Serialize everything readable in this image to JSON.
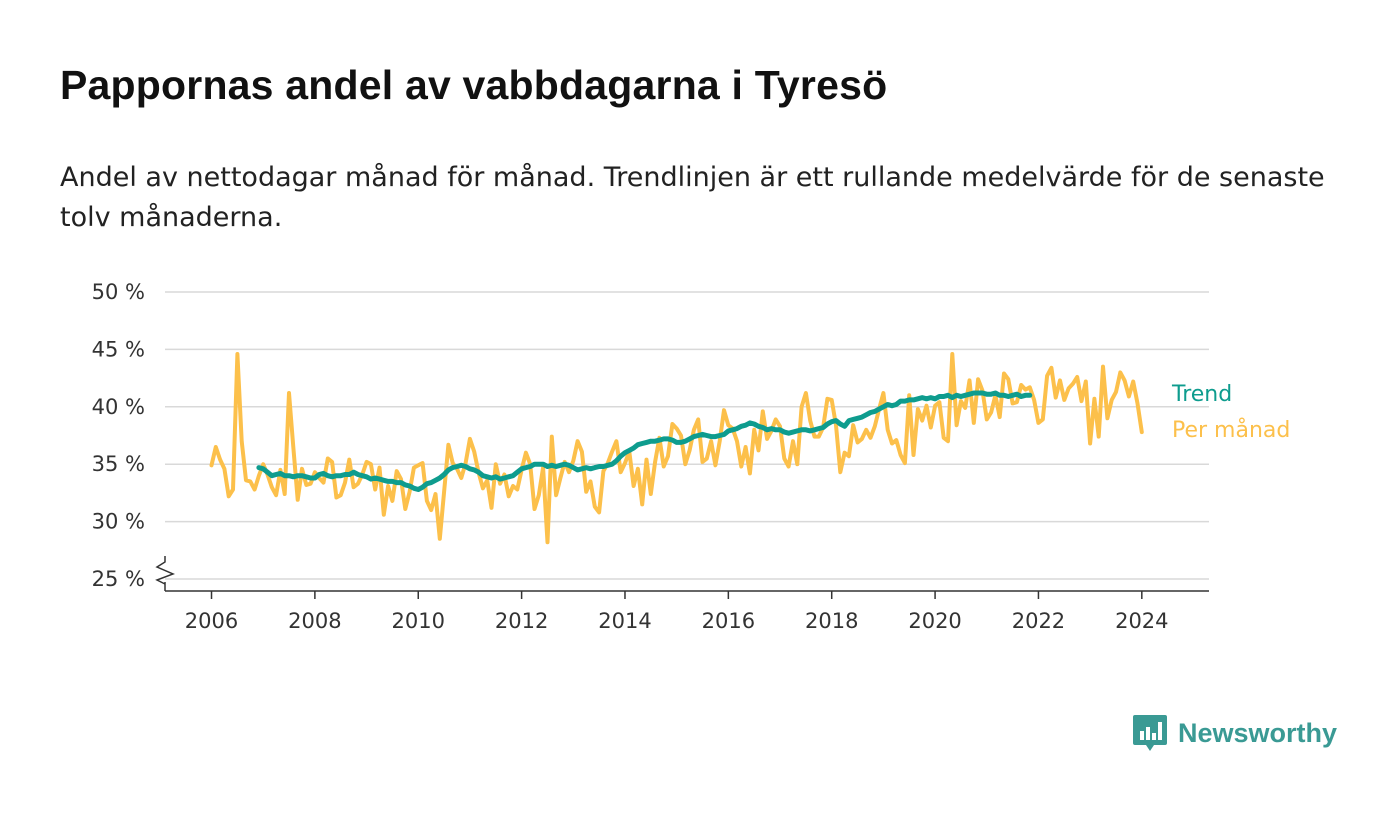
{
  "title": "Pappornas andel av vabbdagarna i Tyresö",
  "subtitle": "Andel av nettodagar månad för månad. Trendlinjen är ett rullande medelvärde för de senaste tolv månaderna.",
  "brand": {
    "name": "Newsworthy",
    "icon": "newsworthy-logo-icon",
    "color": "#3a9a94"
  },
  "chart_data": {
    "type": "line",
    "y_ticks": [
      "25 %",
      "30 %",
      "35 %",
      "40 %",
      "45 %",
      "50 %"
    ],
    "x_ticks": [
      "2006",
      "2008",
      "2010",
      "2012",
      "2014",
      "2016",
      "2018",
      "2020",
      "2022",
      "2024"
    ],
    "ylim": [
      25,
      50
    ],
    "xlim": [
      2005.1,
      2025.3
    ],
    "y_axis_break": true,
    "grid": true,
    "series": [
      {
        "name": "Per månad",
        "color": "#fcc04b",
        "start": 2006.0,
        "step_months": 1,
        "values": [
          34.9,
          36.5,
          35.4,
          34.6,
          32.2,
          32.8,
          44.6,
          37.0,
          33.6,
          33.5,
          32.8,
          34.0,
          35.0,
          34.1,
          33.0,
          32.3,
          34.5,
          32.4,
          41.2,
          36.5,
          31.9,
          34.6,
          33.2,
          33.3,
          34.3,
          33.8,
          33.4,
          35.5,
          35.2,
          32.1,
          32.3,
          33.4,
          35.4,
          33.0,
          33.3,
          34.1,
          35.2,
          35.0,
          32.8,
          34.7,
          30.6,
          33.1,
          31.8,
          34.4,
          33.7,
          31.1,
          32.6,
          34.7,
          34.9,
          35.1,
          31.8,
          31.0,
          32.4,
          28.5,
          32.6,
          36.7,
          35.1,
          34.6,
          33.8,
          35.1,
          37.2,
          36.1,
          34.3,
          32.9,
          33.6,
          31.2,
          35.0,
          33.3,
          34.1,
          32.2,
          33.1,
          32.8,
          34.5,
          36.0,
          35.0,
          31.1,
          32.3,
          34.7,
          28.2,
          37.4,
          32.3,
          33.8,
          35.2,
          34.3,
          35.3,
          37.0,
          36.1,
          32.6,
          33.5,
          31.3,
          30.8,
          34.4,
          35.1,
          36.1,
          37.0,
          34.3,
          35.1,
          36.1,
          33.1,
          34.6,
          31.5,
          35.4,
          32.4,
          35.2,
          37.3,
          34.8,
          35.7,
          38.5,
          38.1,
          37.5,
          35.0,
          36.2,
          38.0,
          38.9,
          35.2,
          35.5,
          37.0,
          34.9,
          37.0,
          39.7,
          38.4,
          38.1,
          37.0,
          34.8,
          36.5,
          34.2,
          38.0,
          36.2,
          39.6,
          37.2,
          37.9,
          38.9,
          38.3,
          35.5,
          34.8,
          37.0,
          35.0,
          40.0,
          41.2,
          38.8,
          37.4,
          37.4,
          38.2,
          40.7,
          40.6,
          38.4,
          34.3,
          36.0,
          35.7,
          38.4,
          36.9,
          37.2,
          38.0,
          37.3,
          38.3,
          39.8,
          41.2,
          38.0,
          36.8,
          37.1,
          35.8,
          35.1,
          41.0,
          35.8,
          39.8,
          38.8,
          40.1,
          38.2,
          40.1,
          40.4,
          37.3,
          37.0,
          44.6,
          38.4,
          40.5,
          39.9,
          42.3,
          38.6,
          42.4,
          41.4,
          38.9,
          39.5,
          41.0,
          39.1,
          42.9,
          42.4,
          40.3,
          40.4,
          41.9,
          41.5,
          41.7,
          40.6,
          38.6,
          38.9,
          42.7,
          43.4,
          40.8,
          42.3,
          40.6,
          41.6,
          42.0,
          42.6,
          40.5,
          42.2,
          36.8,
          40.7,
          37.4,
          43.5,
          39.0,
          40.6,
          41.3,
          43.0,
          42.3,
          40.9,
          42.2,
          40.3,
          37.8
        ]
      },
      {
        "name": "Trend",
        "color": "#0e9c8e",
        "start": 2006.917,
        "step_months": 1,
        "values": [
          34.7,
          34.6,
          34.3,
          34.0,
          34.1,
          34.2,
          34.0,
          34.0,
          33.9,
          34.0,
          34.0,
          33.9,
          33.8,
          33.8,
          34.1,
          34.2,
          34.0,
          33.9,
          34.0,
          34.0,
          34.1,
          34.1,
          34.3,
          34.1,
          34.0,
          33.9,
          33.7,
          33.8,
          33.7,
          33.6,
          33.5,
          33.5,
          33.4,
          33.4,
          33.2,
          33.1,
          32.9,
          32.8,
          33.0,
          33.3,
          33.4,
          33.6,
          33.8,
          34.1,
          34.5,
          34.7,
          34.8,
          34.9,
          34.8,
          34.6,
          34.5,
          34.3,
          34.0,
          33.9,
          33.8,
          33.9,
          33.7,
          33.8,
          33.9,
          34.0,
          34.3,
          34.6,
          34.7,
          34.8,
          35.0,
          35.0,
          35.0,
          34.8,
          34.9,
          34.8,
          34.9,
          35.0,
          34.9,
          34.7,
          34.5,
          34.6,
          34.7,
          34.6,
          34.7,
          34.8,
          34.8,
          34.9,
          35.0,
          35.3,
          35.7,
          36.0,
          36.2,
          36.4,
          36.7,
          36.8,
          36.9,
          37.0,
          37.0,
          37.1,
          37.2,
          37.2,
          37.1,
          36.9,
          36.9,
          37.0,
          37.2,
          37.4,
          37.5,
          37.6,
          37.5,
          37.4,
          37.4,
          37.5,
          37.6,
          37.9,
          38.0,
          38.1,
          38.3,
          38.4,
          38.6,
          38.5,
          38.3,
          38.2,
          38.0,
          38.1,
          38.0,
          38.0,
          37.8,
          37.7,
          37.8,
          37.9,
          38.0,
          38.0,
          37.9,
          38.0,
          38.1,
          38.2,
          38.5,
          38.7,
          38.8,
          38.5,
          38.3,
          38.8,
          38.9,
          39.0,
          39.1,
          39.3,
          39.5,
          39.6,
          39.8,
          40.0,
          40.2,
          40.1,
          40.2,
          40.5,
          40.5,
          40.6,
          40.6,
          40.7,
          40.8,
          40.7,
          40.8,
          40.7,
          40.9,
          40.9,
          41.0,
          40.8,
          41.0,
          40.9,
          41.0,
          41.1,
          41.2,
          41.2,
          41.2,
          41.1,
          41.1,
          41.2,
          41.0,
          41.0,
          40.9,
          41.0,
          41.1,
          40.9,
          41.0,
          41.0
        ]
      }
    ]
  }
}
